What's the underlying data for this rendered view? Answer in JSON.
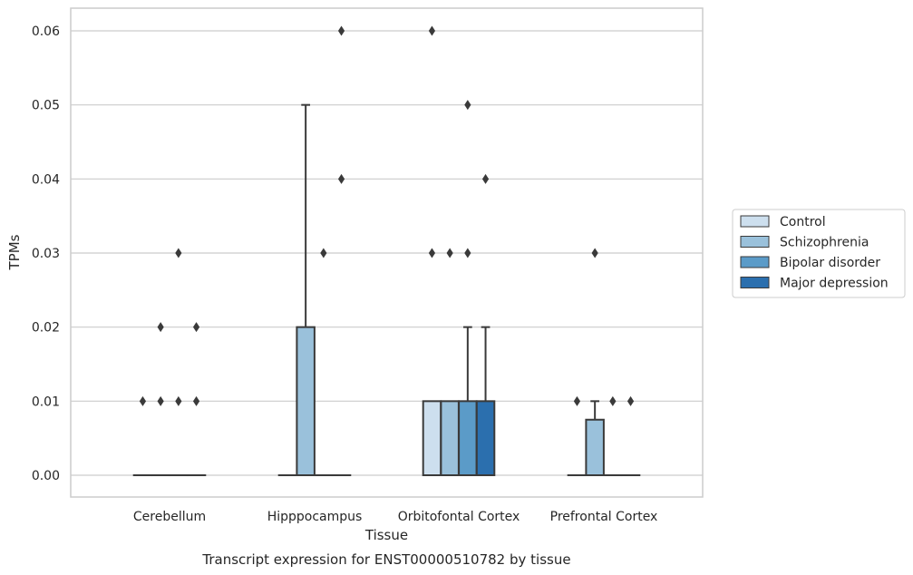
{
  "chart_data": {
    "type": "box",
    "caption": "Transcript expression for ENST00000510782 by tissue",
    "xlabel": "Tissue",
    "ylabel": "TPMs",
    "ylim": [
      -0.003,
      0.063
    ],
    "yticks": [
      0.0,
      0.01,
      0.02,
      0.03,
      0.04,
      0.05,
      0.06
    ],
    "ytick_labels": [
      "0.00",
      "0.01",
      "0.02",
      "0.03",
      "0.04",
      "0.05",
      "0.06"
    ],
    "grid": "horizontal",
    "legend_position": "right",
    "categories": [
      "Cerebellum",
      "Hipppocampus",
      "Orbitofontal Cortex",
      "Prefrontal Cortex"
    ],
    "series": [
      {
        "name": "Control",
        "color": "#cddfee",
        "boxes": [
          {
            "q1": 0.0,
            "median": 0.0,
            "q3": 0.0,
            "whislo": 0.0,
            "whishi": 0.0,
            "fliers": [
              0.01
            ]
          },
          {
            "q1": 0.0,
            "median": 0.0,
            "q3": 0.0,
            "whislo": 0.0,
            "whishi": 0.0,
            "fliers": []
          },
          {
            "q1": 0.0,
            "median": 0.0,
            "q3": 0.01,
            "whislo": 0.0,
            "whishi": 0.01,
            "fliers": [
              0.03,
              0.06
            ]
          },
          {
            "q1": 0.0,
            "median": 0.0,
            "q3": 0.0,
            "whislo": 0.0,
            "whishi": 0.0,
            "fliers": [
              0.01
            ]
          }
        ]
      },
      {
        "name": "Schizophrenia",
        "color": "#9ac1db",
        "boxes": [
          {
            "q1": 0.0,
            "median": 0.0,
            "q3": 0.0,
            "whislo": 0.0,
            "whishi": 0.0,
            "fliers": [
              0.01,
              0.02
            ]
          },
          {
            "q1": 0.0,
            "median": 0.0,
            "q3": 0.02,
            "whislo": 0.0,
            "whishi": 0.05,
            "fliers": []
          },
          {
            "q1": 0.0,
            "median": 0.0,
            "q3": 0.01,
            "whislo": 0.0,
            "whishi": 0.01,
            "fliers": [
              0.03
            ]
          },
          {
            "q1": 0.0,
            "median": 0.0,
            "q3": 0.0075,
            "whislo": 0.0,
            "whishi": 0.01,
            "fliers": [
              0.03
            ]
          }
        ]
      },
      {
        "name": "Bipolar disorder",
        "color": "#5b9bc8",
        "boxes": [
          {
            "q1": 0.0,
            "median": 0.0,
            "q3": 0.0,
            "whislo": 0.0,
            "whishi": 0.0,
            "fliers": [
              0.01,
              0.03
            ]
          },
          {
            "q1": 0.0,
            "median": 0.0,
            "q3": 0.0,
            "whislo": 0.0,
            "whishi": 0.0,
            "fliers": [
              0.03
            ]
          },
          {
            "q1": 0.0,
            "median": 0.0,
            "q3": 0.01,
            "whislo": 0.0,
            "whishi": 0.02,
            "fliers": [
              0.03,
              0.05
            ]
          },
          {
            "q1": 0.0,
            "median": 0.0,
            "q3": 0.0,
            "whislo": 0.0,
            "whishi": 0.0,
            "fliers": [
              0.01
            ]
          }
        ]
      },
      {
        "name": "Major depression",
        "color": "#2b6fae",
        "boxes": [
          {
            "q1": 0.0,
            "median": 0.0,
            "q3": 0.0,
            "whislo": 0.0,
            "whishi": 0.0,
            "fliers": [
              0.01,
              0.02
            ]
          },
          {
            "q1": 0.0,
            "median": 0.0,
            "q3": 0.0,
            "whislo": 0.0,
            "whishi": 0.0,
            "fliers": [
              0.04,
              0.06
            ]
          },
          {
            "q1": 0.0,
            "median": 0.0,
            "q3": 0.01,
            "whislo": 0.0,
            "whishi": 0.02,
            "fliers": [
              0.04
            ]
          },
          {
            "q1": 0.0,
            "median": 0.0,
            "q3": 0.0,
            "whislo": 0.0,
            "whishi": 0.0,
            "fliers": [
              0.01
            ]
          }
        ]
      }
    ]
  }
}
